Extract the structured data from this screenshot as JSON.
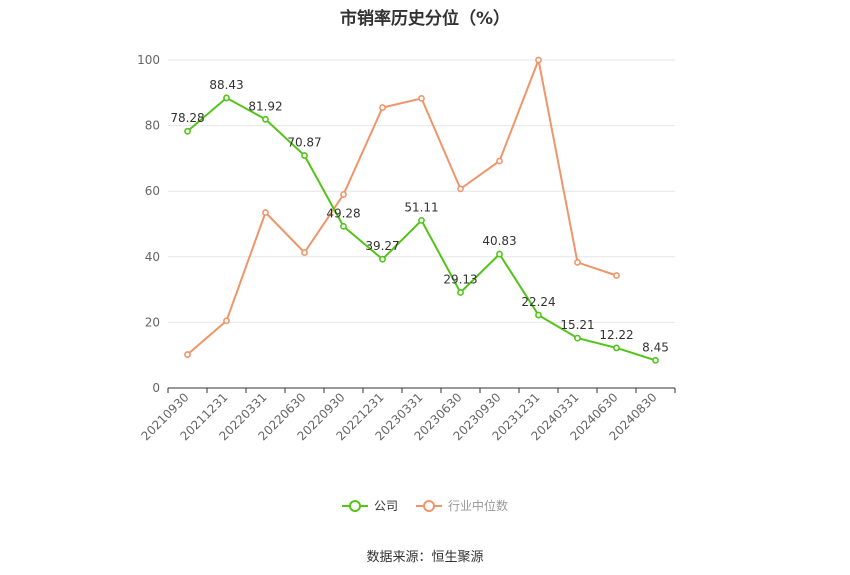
{
  "chart_data": {
    "type": "line",
    "title": "市销率历史分位（%）",
    "categories": [
      "20210930",
      "20211231",
      "20220331",
      "20220630",
      "20220930",
      "20221231",
      "20230331",
      "20230630",
      "20230930",
      "20231231",
      "20240331",
      "20240630",
      "20240830"
    ],
    "ylim": [
      0,
      100
    ],
    "yticks": [
      0,
      20,
      40,
      60,
      80,
      100
    ],
    "grid": true,
    "legend_position": "bottom",
    "series": [
      {
        "name": "公司",
        "color": "#52c41a",
        "labels_shown": true,
        "values": [
          78.28,
          88.43,
          81.92,
          70.87,
          49.28,
          39.27,
          51.11,
          29.13,
          40.83,
          22.24,
          15.21,
          12.22,
          8.45
        ]
      },
      {
        "name": "行业中位数",
        "color": "#f0956a",
        "labels_shown": false,
        "values": [
          10.2,
          20.5,
          53.5,
          41.3,
          59.0,
          85.5,
          88.3,
          60.7,
          69.2,
          100.0,
          38.3,
          34.3,
          null
        ]
      }
    ]
  },
  "legend": {
    "company": "公司",
    "industry": "行业中位数"
  },
  "footer": {
    "source": "数据来源：恒生聚源"
  }
}
